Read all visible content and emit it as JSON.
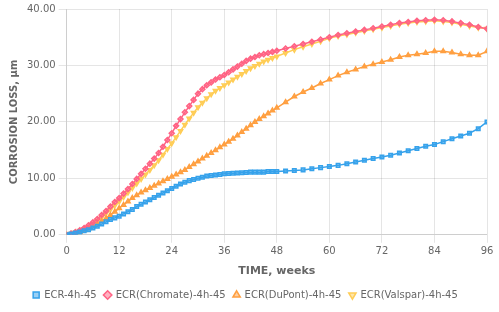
{
  "chart_data": {
    "type": "line",
    "xlabel": "TIME, weeks",
    "ylabel": "CORROSION LOSS, μm",
    "xlim": [
      0,
      96
    ],
    "ylim": [
      0,
      40
    ],
    "xticks": [
      0,
      12,
      24,
      36,
      48,
      60,
      72,
      84,
      96
    ],
    "yticks": [
      {
        "value": 0,
        "label": "0.00"
      },
      {
        "value": 10,
        "label": "10.00"
      },
      {
        "value": 20,
        "label": "20.00"
      },
      {
        "value": 30,
        "label": "30.00"
      },
      {
        "value": 40,
        "label": "40.00"
      }
    ],
    "grid": true,
    "legend": "bottom",
    "x": [
      0,
      1,
      2,
      3,
      4,
      5,
      6,
      7,
      8,
      9,
      10,
      11,
      12,
      13,
      14,
      15,
      16,
      17,
      18,
      19,
      20,
      21,
      22,
      23,
      24,
      25,
      26,
      27,
      28,
      29,
      30,
      31,
      32,
      33,
      34,
      35,
      36,
      37,
      38,
      39,
      40,
      41,
      42,
      43,
      44,
      45,
      46,
      47,
      48,
      50,
      52,
      54,
      56,
      58,
      60,
      62,
      64,
      66,
      68,
      70,
      72,
      74,
      76,
      78,
      80,
      82,
      84,
      86,
      88,
      90,
      92,
      94,
      96
    ],
    "series": [
      {
        "name": "ECR-4h-45",
        "marker": "square",
        "values": [
          0,
          0.15,
          0.3,
          0.5,
          0.7,
          0.9,
          1.2,
          1.5,
          1.9,
          2.3,
          2.7,
          3.0,
          3.3,
          3.7,
          4.1,
          4.5,
          5.0,
          5.4,
          5.8,
          6.2,
          6.6,
          7.0,
          7.4,
          7.8,
          8.2,
          8.6,
          9.0,
          9.3,
          9.6,
          9.8,
          10.0,
          10.2,
          10.4,
          10.5,
          10.6,
          10.7,
          10.8,
          10.85,
          10.9,
          10.95,
          11.0,
          11.05,
          11.1,
          11.1,
          11.1,
          11.1,
          11.2,
          11.2,
          11.2,
          11.3,
          11.4,
          11.5,
          11.7,
          11.9,
          12.1,
          12.3,
          12.6,
          12.9,
          13.2,
          13.5,
          13.8,
          14.1,
          14.5,
          14.9,
          15.3,
          15.7,
          16.0,
          16.5,
          17.0,
          17.5,
          18.0,
          18.8,
          20.0
        ]
      },
      {
        "name": "ECR(Chromate)-4h-45",
        "marker": "diamond",
        "values": [
          0,
          0.2,
          0.5,
          0.8,
          1.2,
          1.7,
          2.2,
          2.8,
          3.5,
          4.2,
          5.0,
          5.8,
          6.5,
          7.3,
          8.1,
          9.0,
          9.9,
          10.8,
          11.7,
          12.6,
          13.5,
          14.5,
          15.6,
          16.8,
          18.0,
          19.3,
          20.5,
          21.7,
          22.8,
          23.9,
          25.0,
          25.8,
          26.5,
          27.0,
          27.5,
          27.9,
          28.3,
          28.8,
          29.3,
          29.8,
          30.3,
          30.8,
          31.2,
          31.5,
          31.8,
          32.0,
          32.2,
          32.4,
          32.6,
          33.0,
          33.4,
          33.8,
          34.2,
          34.6,
          35.0,
          35.4,
          35.7,
          36.0,
          36.3,
          36.6,
          36.9,
          37.2,
          37.5,
          37.7,
          37.9,
          38.0,
          38.1,
          38.0,
          37.8,
          37.5,
          37.2,
          36.8,
          36.5
        ]
      },
      {
        "name": "ECR(DuPont)-4h-45",
        "marker": "triangle-up",
        "values": [
          0,
          0.15,
          0.3,
          0.5,
          0.8,
          1.1,
          1.5,
          1.9,
          2.4,
          2.9,
          3.5,
          4.1,
          4.7,
          5.3,
          5.9,
          6.5,
          7.0,
          7.5,
          7.9,
          8.3,
          8.7,
          9.1,
          9.5,
          9.9,
          10.3,
          10.7,
          11.1,
          11.5,
          12.0,
          12.5,
          13.0,
          13.5,
          14.0,
          14.5,
          15.0,
          15.5,
          16.0,
          16.5,
          17.0,
          17.6,
          18.2,
          18.8,
          19.4,
          20.0,
          20.5,
          21.0,
          21.5,
          22.0,
          22.5,
          23.5,
          24.5,
          25.3,
          26.0,
          26.8,
          27.5,
          28.2,
          28.8,
          29.3,
          29.8,
          30.2,
          30.6,
          31.0,
          31.5,
          31.8,
          32.0,
          32.2,
          32.5,
          32.5,
          32.3,
          32.0,
          31.8,
          31.8,
          32.5
        ]
      },
      {
        "name": "ECR(Valspar)-4h-45",
        "marker": "triangle-down",
        "values": [
          0,
          0.2,
          0.4,
          0.7,
          1.0,
          1.4,
          1.9,
          2.5,
          3.1,
          3.8,
          4.5,
          5.2,
          5.9,
          6.7,
          7.5,
          8.3,
          9.1,
          9.9,
          10.7,
          11.5,
          12.3,
          13.2,
          14.2,
          15.2,
          16.2,
          17.3,
          18.4,
          19.5,
          20.6,
          21.6,
          22.6,
          23.4,
          24.2,
          24.9,
          25.5,
          26.0,
          26.5,
          27.0,
          27.5,
          28.0,
          28.5,
          29.0,
          29.5,
          29.9,
          30.3,
          30.7,
          31.0,
          31.3,
          31.6,
          32.2,
          32.8,
          33.3,
          33.8,
          34.3,
          34.8,
          35.2,
          35.5,
          35.8,
          36.1,
          36.4,
          36.7,
          37.0,
          37.3,
          37.5,
          37.7,
          37.8,
          37.9,
          37.8,
          37.6,
          37.3,
          37.0,
          36.7,
          36.5
        ]
      }
    ]
  }
}
